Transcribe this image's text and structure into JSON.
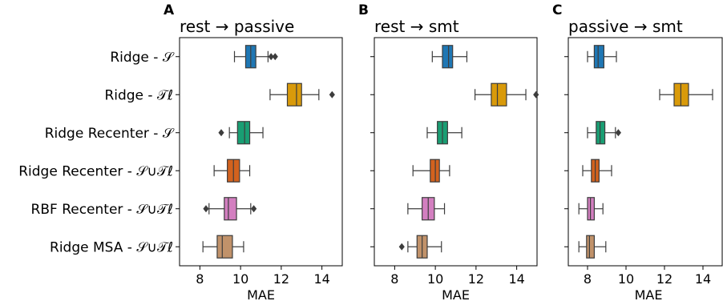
{
  "chart_data": [
    {
      "type": "boxplot",
      "panel": "A",
      "title": "rest → passive",
      "xlabel": "MAE",
      "xlim": [
        7.0,
        15.0
      ],
      "xticks": [
        8,
        10,
        12,
        14
      ],
      "grid": false,
      "categories": [
        "Ridge - 𝒮",
        "Ridge - 𝒯ℓ",
        "Ridge Recenter - 𝒮",
        "Ridge Recenter - 𝒮∪𝒯ℓ",
        "RBF Recenter - 𝒮∪𝒯ℓ",
        "Ridge MSA - 𝒮∪𝒯ℓ"
      ],
      "colors": [
        "#1f77b4",
        "#d99a0a",
        "#199e73",
        "#d2621e",
        "#d37fc0",
        "#c1926a"
      ],
      "boxes": [
        {
          "whislo": 9.7,
          "q1": 10.25,
          "med": 10.5,
          "q3": 10.75,
          "whishi": 11.35,
          "fliers": [
            11.5,
            11.7
          ]
        },
        {
          "whislo": 11.45,
          "q1": 12.3,
          "med": 12.75,
          "q3": 13.0,
          "whishi": 13.85,
          "fliers": [
            14.5
          ]
        },
        {
          "whislo": 9.45,
          "q1": 9.85,
          "med": 10.2,
          "q3": 10.45,
          "whishi": 11.1,
          "fliers": [
            9.05
          ]
        },
        {
          "whislo": 8.7,
          "q1": 9.35,
          "med": 9.65,
          "q3": 9.95,
          "whishi": 10.45,
          "fliers": []
        },
        {
          "whislo": 8.45,
          "q1": 9.2,
          "med": 9.4,
          "q3": 9.8,
          "whishi": 10.5,
          "fliers": [
            8.3,
            10.65
          ]
        },
        {
          "whislo": 8.15,
          "q1": 8.85,
          "med": 9.1,
          "q3": 9.6,
          "whishi": 10.15,
          "fliers": []
        }
      ]
    },
    {
      "type": "boxplot",
      "panel": "B",
      "title": "rest → smt",
      "xlabel": "MAE",
      "xlim": [
        7.0,
        15.0
      ],
      "xticks": [
        8,
        10,
        12,
        14
      ],
      "grid": false,
      "categories": [
        "Ridge - 𝒮",
        "Ridge - 𝒯ℓ",
        "Ridge Recenter - 𝒮",
        "Ridge Recenter - 𝒮∪𝒯ℓ",
        "RBF Recenter - 𝒮∪𝒯ℓ",
        "Ridge MSA - 𝒮∪𝒯ℓ"
      ],
      "colors": [
        "#1f77b4",
        "#d99a0a",
        "#199e73",
        "#d2621e",
        "#d37fc0",
        "#c1926a"
      ],
      "boxes": [
        {
          "whislo": 9.85,
          "q1": 10.35,
          "med": 10.65,
          "q3": 10.85,
          "whishi": 11.55,
          "fliers": []
        },
        {
          "whislo": 11.95,
          "q1": 12.75,
          "med": 13.05,
          "q3": 13.5,
          "whishi": 14.45,
          "fliers": [
            14.95
          ]
        },
        {
          "whislo": 9.6,
          "q1": 10.1,
          "med": 10.35,
          "q3": 10.6,
          "whishi": 11.3,
          "fliers": []
        },
        {
          "whislo": 8.9,
          "q1": 9.75,
          "med": 10.0,
          "q3": 10.2,
          "whishi": 10.7,
          "fliers": []
        },
        {
          "whislo": 8.65,
          "q1": 9.35,
          "med": 9.65,
          "q3": 9.95,
          "whishi": 10.45,
          "fliers": []
        },
        {
          "whislo": 8.65,
          "q1": 9.1,
          "med": 9.35,
          "q3": 9.6,
          "whishi": 10.3,
          "fliers": [
            8.35
          ]
        }
      ]
    },
    {
      "type": "boxplot",
      "panel": "C",
      "title": "passive → smt",
      "xlabel": "MAE",
      "xlim": [
        7.0,
        15.0
      ],
      "xticks": [
        8,
        10,
        12,
        14
      ],
      "grid": false,
      "categories": [
        "Ridge - 𝒮",
        "Ridge - 𝒯ℓ",
        "Ridge Recenter - 𝒮",
        "Ridge Recenter - 𝒮∪𝒯ℓ",
        "RBF Recenter - 𝒮∪𝒯ℓ",
        "Ridge MSA - 𝒮∪𝒯ℓ"
      ],
      "colors": [
        "#1f77b4",
        "#d99a0a",
        "#199e73",
        "#d2621e",
        "#d37fc0",
        "#c1926a"
      ],
      "boxes": [
        {
          "whislo": 8.0,
          "q1": 8.35,
          "med": 8.55,
          "q3": 8.85,
          "whishi": 9.5,
          "fliers": []
        },
        {
          "whislo": 11.75,
          "q1": 12.5,
          "med": 12.85,
          "q3": 13.25,
          "whishi": 14.5,
          "fliers": []
        },
        {
          "whislo": 8.0,
          "q1": 8.45,
          "med": 8.65,
          "q3": 8.9,
          "whishi": 9.45,
          "fliers": [
            9.6
          ]
        },
        {
          "whislo": 7.75,
          "q1": 8.2,
          "med": 8.4,
          "q3": 8.6,
          "whishi": 9.25,
          "fliers": []
        },
        {
          "whislo": 7.55,
          "q1": 8.0,
          "med": 8.15,
          "q3": 8.35,
          "whishi": 8.8,
          "fliers": []
        },
        {
          "whislo": 7.55,
          "q1": 7.95,
          "med": 8.1,
          "q3": 8.35,
          "whishi": 8.95,
          "fliers": []
        }
      ]
    }
  ]
}
